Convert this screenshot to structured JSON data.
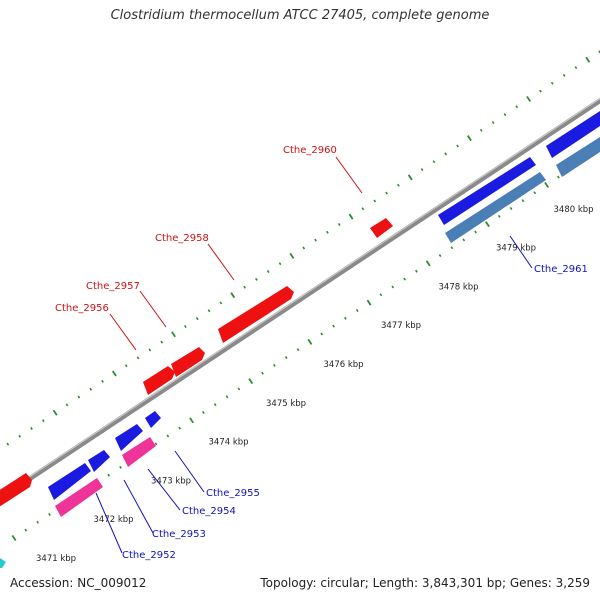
{
  "title": "Clostridium thermocellum ATCC 27405, complete genome",
  "footer": {
    "accession": "Accession: NC_009012",
    "summary": "Topology: circular; Length: 3,843,301 bp; Genes: 3,259"
  },
  "colors": {
    "backbone": "#8a8a8a",
    "tick": "#2e8b2e",
    "forward_gene": "#ee1111",
    "reverse_gene": "#1a1ae0",
    "reverse_pink": "#ee3399",
    "reverse_steel": "#4a7fb5",
    "label_red": "#cc1111",
    "label_blue": "#1111bb",
    "cyan": "#22cccc"
  },
  "kbp_labels": [
    "3471 kbp",
    "3472 kbp",
    "3473 kbp",
    "3474 kbp",
    "3475 kbp",
    "3476 kbp",
    "3477 kbp",
    "3478 kbp",
    "3479 kbp",
    "3480 kbp"
  ],
  "gene_labels_forward": [
    "Cthe_2956",
    "Cthe_2957",
    "Cthe_2958",
    "Cthe_2960"
  ],
  "gene_labels_reverse": [
    "Cthe_2952",
    "Cthe_2953",
    "Cthe_2954",
    "Cthe_2955",
    "Cthe_2961"
  ]
}
